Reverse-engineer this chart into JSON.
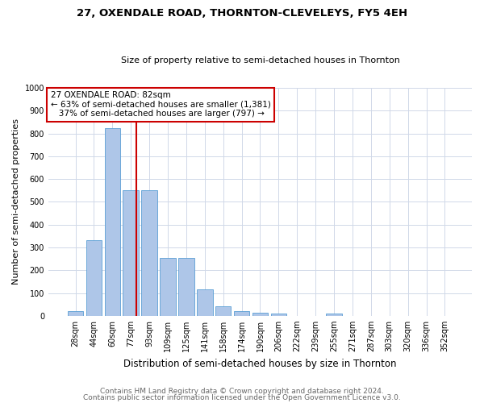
{
  "title": "27, OXENDALE ROAD, THORNTON-CLEVELEYS, FY5 4EH",
  "subtitle": "Size of property relative to semi-detached houses in Thornton",
  "xlabel": "Distribution of semi-detached houses by size in Thornton",
  "ylabel": "Number of semi-detached properties",
  "footer1": "Contains HM Land Registry data © Crown copyright and database right 2024.",
  "footer2": "Contains public sector information licensed under the Open Government Licence v3.0.",
  "categories": [
    "28sqm",
    "44sqm",
    "60sqm",
    "77sqm",
    "93sqm",
    "109sqm",
    "125sqm",
    "141sqm",
    "158sqm",
    "174sqm",
    "190sqm",
    "206sqm",
    "222sqm",
    "239sqm",
    "255sqm",
    "271sqm",
    "287sqm",
    "303sqm",
    "320sqm",
    "336sqm",
    "352sqm"
  ],
  "values": [
    20,
    330,
    825,
    550,
    550,
    255,
    255,
    115,
    42,
    20,
    15,
    10,
    0,
    0,
    10,
    0,
    0,
    0,
    0,
    0,
    0
  ],
  "bar_color": "#aec6e8",
  "bar_edge_color": "#5a9fd4",
  "property_size": 82,
  "pct_smaller": 63,
  "pct_smaller_n": "1,381",
  "pct_larger": 37,
  "pct_larger_n": "797",
  "ylim": [
    0,
    1000
  ],
  "annotation_box_color": "#ffffff",
  "annotation_box_edge": "#cc0000",
  "line_color": "#cc0000",
  "bg_color": "#ffffff",
  "grid_color": "#d0d8e8",
  "title_fontsize": 9.5,
  "subtitle_fontsize": 8,
  "ylabel_fontsize": 8,
  "xlabel_fontsize": 8.5,
  "tick_fontsize": 7,
  "ann_fontsize": 7.5,
  "footer_fontsize": 6.5
}
